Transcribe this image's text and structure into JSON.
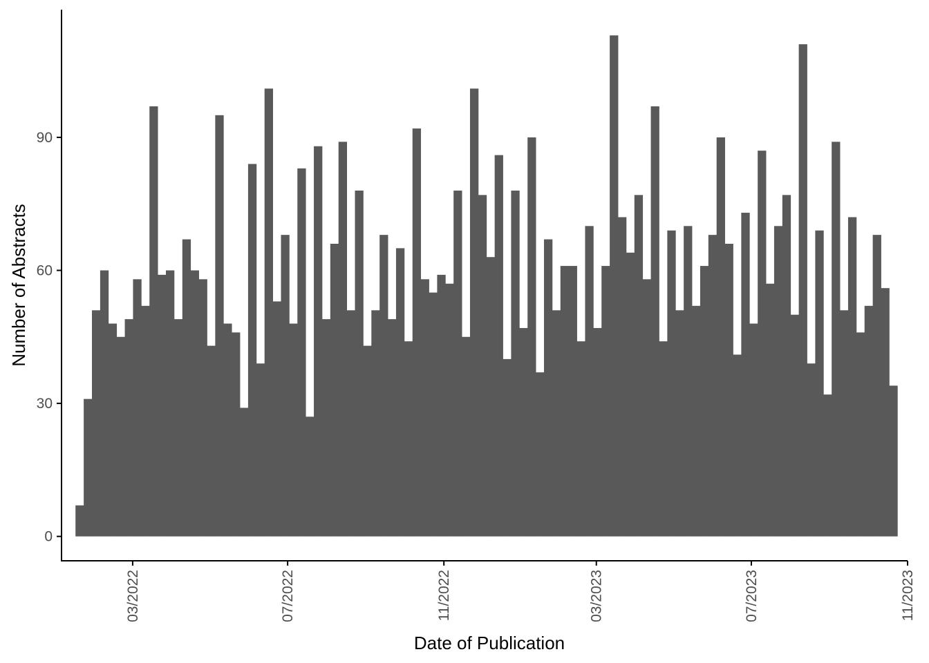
{
  "chart_data": {
    "type": "bar",
    "xlabel": "Date of Publication",
    "ylabel": "Number of Abstracts",
    "x_axis": {
      "ticks": [
        "2022-03-01",
        "2022-07-01",
        "2022-11-01",
        "2023-03-01",
        "2023-07-01",
        "2023-11-01"
      ],
      "tick_labels": [
        "03/2022",
        "07/2022",
        "11/2022",
        "03/2023",
        "07/2023",
        "11/2023"
      ],
      "range": [
        "2022-01-04",
        "2023-11-01"
      ]
    },
    "y_axis": {
      "ticks": [
        0,
        30,
        60,
        90
      ],
      "tick_labels": [
        "0",
        "30",
        "60",
        "90"
      ],
      "range": [
        -5.5,
        118.8
      ]
    },
    "bin_range": [
      "2022-01-15",
      "2023-10-24"
    ],
    "values": [
      7,
      31,
      51,
      60,
      48,
      45,
      49,
      58,
      52,
      97,
      59,
      60,
      49,
      67,
      60,
      58,
      43,
      95,
      48,
      46,
      29,
      84,
      39,
      101,
      53,
      68,
      48,
      83,
      27,
      88,
      49,
      66,
      89,
      51,
      78,
      43,
      51,
      68,
      49,
      65,
      44,
      92,
      58,
      55,
      59,
      57,
      78,
      45,
      101,
      77,
      63,
      86,
      40,
      78,
      47,
      90,
      37,
      67,
      51,
      61,
      61,
      44,
      70,
      47,
      61,
      113,
      72,
      64,
      77,
      58,
      97,
      44,
      69,
      51,
      70,
      52,
      61,
      68,
      90,
      66,
      41,
      73,
      48,
      87,
      57,
      70,
      77,
      50,
      111,
      39,
      69,
      32,
      89,
      51,
      72,
      46,
      52,
      68,
      56,
      34
    ],
    "grid": false,
    "legend": "none",
    "bar_color": "#595959",
    "axis_color": "#000000",
    "tick_label_color": "#4d4d4d"
  }
}
